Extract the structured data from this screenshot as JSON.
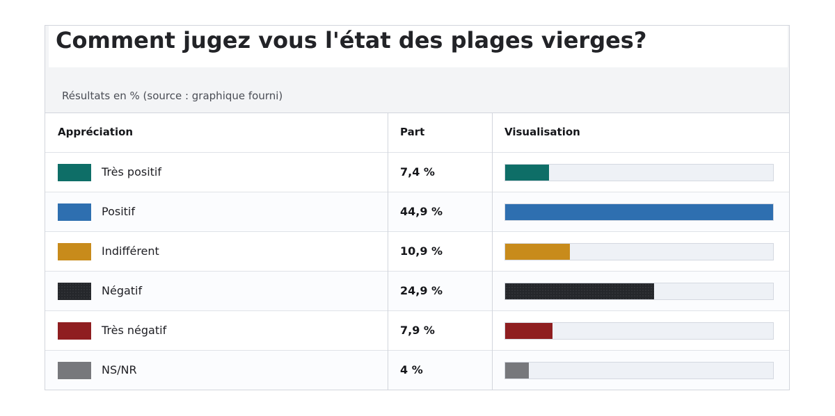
{
  "header": {
    "title": "Comment jugez vous l'état des plages vierges?",
    "subtitle": "Résultats en % (source : graphique fourni)"
  },
  "table": {
    "columns": [
      "Appréciation",
      "Part",
      "Visualisation"
    ]
  },
  "chart_data": {
    "type": "bar",
    "title": "Comment jugez vous l'état des plages vierges?",
    "subtitle": "Résultats en % (source : graphique fourni)",
    "categories": [
      "Très positif",
      "Positif",
      "Indifférent",
      "Négatif",
      "Très négatif",
      "NS/NR"
    ],
    "values": [
      7.4,
      44.9,
      10.9,
      24.9,
      7.9,
      4
    ],
    "value_labels": [
      "7,4 %",
      "44,9 %",
      "10,9 %",
      "24,9 %",
      "7,9 %",
      "4 %"
    ],
    "colors": [
      "#0e6e67",
      "#2e6fb0",
      "#c88b1b",
      "#25272b",
      "#8f1e20",
      "#77787c"
    ],
    "xlim": [
      0,
      44.9
    ],
    "unit": "%"
  }
}
